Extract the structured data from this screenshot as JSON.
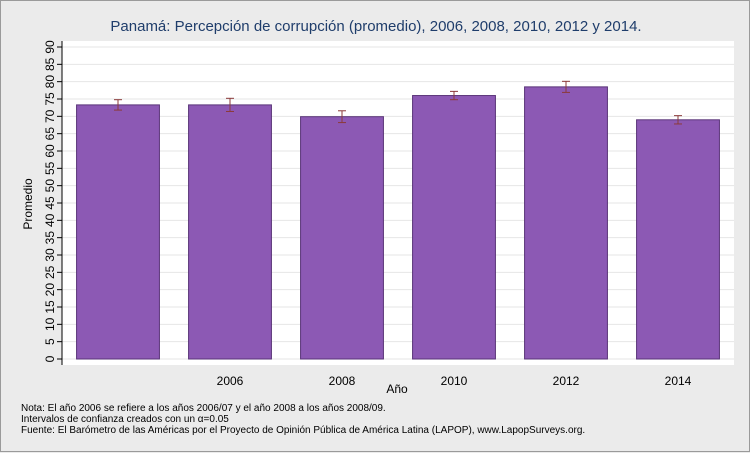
{
  "chart_data": {
    "type": "bar",
    "title": "Panamá: Percepción de corrupción (promedio), 2006, 2008, 2010, 2012 y 2014.",
    "xlabel": "Año",
    "ylabel": "Promedio",
    "categories": [
      "",
      "2006",
      "2008",
      "2010",
      "2012",
      "2014"
    ],
    "values": [
      73.3,
      73.3,
      69.9,
      76.0,
      78.5,
      69.0
    ],
    "error_low": [
      71.8,
      71.4,
      68.2,
      74.8,
      76.9,
      67.8
    ],
    "error_high": [
      74.8,
      75.2,
      71.6,
      77.2,
      80.1,
      70.2
    ],
    "ylim": [
      0,
      90
    ],
    "yticks": [
      "0",
      "5",
      "10",
      "15",
      "20",
      "25",
      "30",
      "35",
      "40",
      "45",
      "50",
      "55",
      "60",
      "65",
      "70",
      "75",
      "80",
      "85",
      "90"
    ],
    "grid": true,
    "bar_color": "#8c59b4",
    "bar_edge_color": "#5a3479",
    "error_color": "#8b3a3a",
    "background_color": "#ebebeb",
    "plot_background_color": "#ffffff"
  },
  "notes": {
    "line1": "Nota: El año 2006 se refiere a los años 2006/07 y el año 2008 a los años 2008/09.",
    "line2": "Intervalos de confianza creados con un α=0.05",
    "line3": "Fuente: El Barómetro de las Américas por el Proyecto de Opinión Pública de América Latina (LAPOP), www.LapopSurveys.org."
  }
}
